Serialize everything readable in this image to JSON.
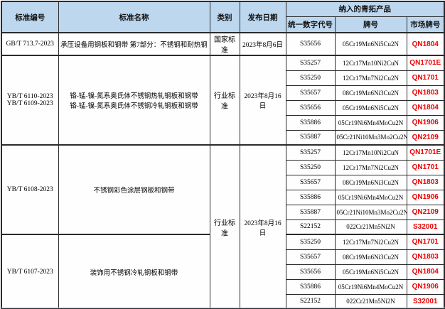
{
  "table": {
    "header": {
      "col_standard_no": "标准编号",
      "col_standard_name": "标准名称",
      "col_category": "类别",
      "col_pub_date": "发布日期",
      "col_products_group": "纳入的青拓产品",
      "col_code": "统一数字代号",
      "col_grade": "牌号",
      "col_market_grade": "市场牌号"
    },
    "groups": [
      {
        "standard_no": [
          "GB/T 713.7-2023"
        ],
        "standard_name": [
          "承压设备用钢板和钢带 第7部分：不锈钢和耐热钢"
        ],
        "category": "国家标准",
        "pub_date": "2023年8月6日",
        "category_spans_next_group": false,
        "products": [
          {
            "code": "S35656",
            "grade": "05Cr19Mn6Ni5Cu2N",
            "market": "QN1804"
          }
        ]
      },
      {
        "standard_no": [
          "YB/T 6110-2023",
          "YB/T 6109-2023"
        ],
        "standard_name": [
          "铬-锰-镍-氮系奥氏体不锈钢热轧钢板和钢带",
          "铬-锰-镍-氮系奥氏体不锈钢冷轧钢板和钢带"
        ],
        "category": "行业标准",
        "pub_date": "2023年8月16日",
        "category_spans_next_group": false,
        "products": [
          {
            "code": "S35257",
            "grade": "12Cr17Mn10Ni2CuN",
            "market": "QN1701E"
          },
          {
            "code": "S35250",
            "grade": "12Cr17Mn7Ni2Cu2N",
            "market": "QN1701"
          },
          {
            "code": "S35657",
            "grade": "08Cr19Mn6Ni3Cu2N",
            "market": "QN1803"
          },
          {
            "code": "S35656",
            "grade": "05Cr19Mn6Ni5Cu2N",
            "market": "QN1804"
          },
          {
            "code": "S35886",
            "grade": "05Cr19Ni6Mn4MoCu2N",
            "market": "QN1906"
          },
          {
            "code": "S35887",
            "grade": "05Cr21Ni10Mn3Mo2Cu2N",
            "market": "QN2109"
          }
        ]
      },
      {
        "standard_no": [
          "YB/T 6108-2023"
        ],
        "standard_name": [
          "不锈钢彩色涂层钢板和钢带"
        ],
        "category": "行业标准",
        "pub_date": "2023年8月16日",
        "category_spans_next_group": true,
        "products": [
          {
            "code": "S35257",
            "grade": "12Cr17Mn10Ni2CuN",
            "market": "QN1701E"
          },
          {
            "code": "S35250",
            "grade": "12Cr17Mn7Ni2Cu2N",
            "market": "QN1701"
          },
          {
            "code": "S35657",
            "grade": "08Cr19Mn6Ni3Cu2N",
            "market": "QN1803"
          },
          {
            "code": "S35886",
            "grade": "05Cr19Ni6Mn4MoCu2N",
            "market": "QN1906"
          },
          {
            "code": "S35887",
            "grade": "05Cr21Ni10Mn3Mo2Cu2N",
            "market": "QN2109"
          },
          {
            "code": "S22152",
            "grade": "022Cr21Mn5Ni2N",
            "market": "S32001"
          }
        ]
      },
      {
        "standard_no": [
          "YB/T 6107-2023"
        ],
        "standard_name": [
          "装饰用不锈钢冷轧钢板和钢带"
        ],
        "category": null,
        "pub_date": null,
        "category_spans_next_group": false,
        "products": [
          {
            "code": "S35250",
            "grade": "12Cr17Mn7Ni2Cu2N",
            "market": "QN1701"
          },
          {
            "code": "S35657",
            "grade": "08Cr19Mn6Ni3Cu2N",
            "market": "QN1803"
          },
          {
            "code": "S35656",
            "grade": "05Cr19Mn6Ni5Cu2N",
            "market": "QN1804"
          },
          {
            "code": "S35886",
            "grade": "05Cr19Ni6Mn4MoCu2N",
            "market": "QN1906"
          },
          {
            "code": "S22152",
            "grade": "022Cr21Mn5Ni2N",
            "market": "S32001"
          }
        ]
      }
    ],
    "colors": {
      "header_bg": "#BDD7EE",
      "market_grade_color": "#EE0000",
      "border": "#2B2B2B",
      "bottom_gridline": "#9DBEE3"
    }
  }
}
